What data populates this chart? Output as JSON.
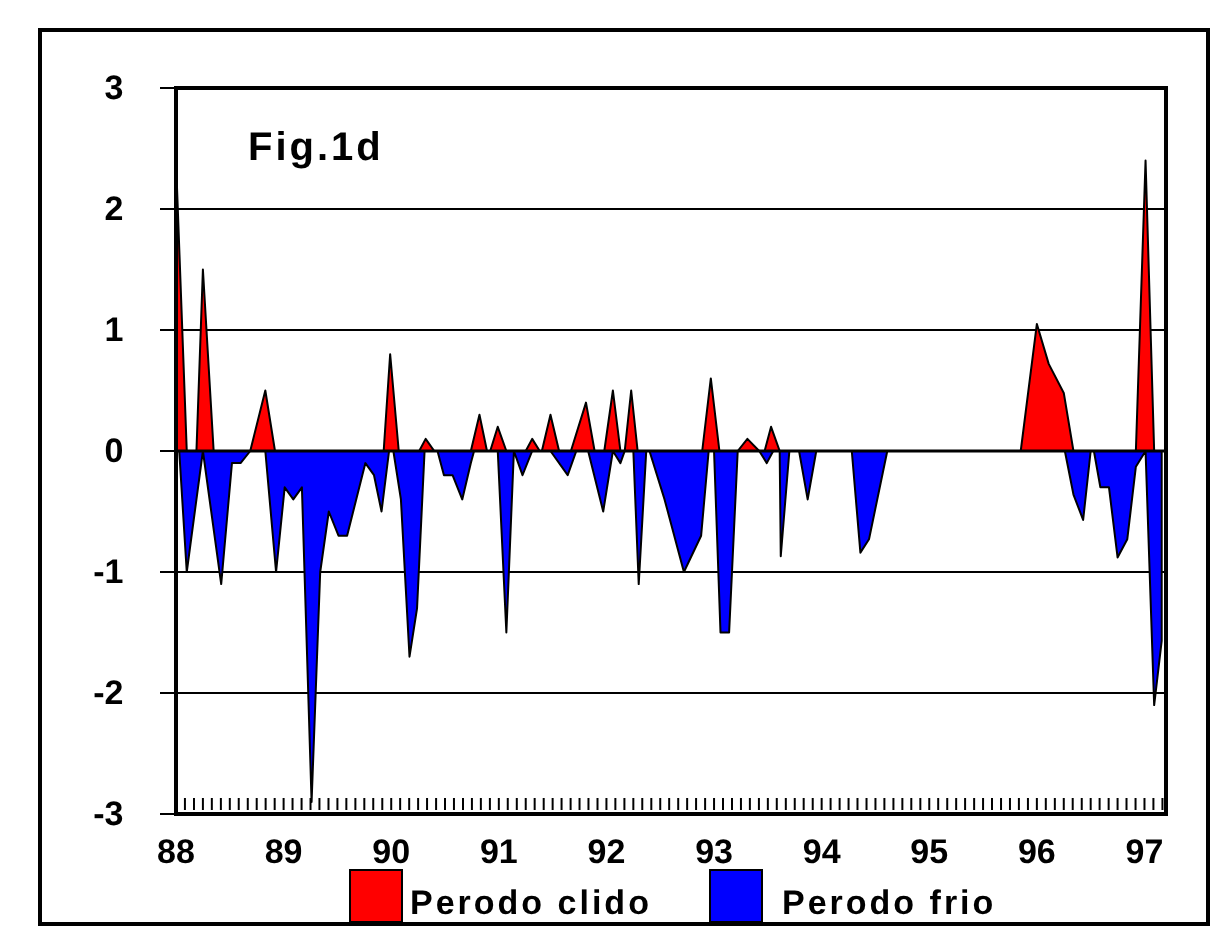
{
  "chart_data": {
    "type": "area",
    "title": "Fig.1d",
    "xlim": [
      88,
      97.2
    ],
    "ylim": [
      -3,
      3
    ],
    "yticks": [
      -3,
      -2,
      -1,
      0,
      1,
      2,
      3
    ],
    "xticks": [
      88,
      {
        "value": 88.083,
        "label": null
      },
      {
        "value": 88.167,
        "label": null
      },
      {
        "value": 88.25,
        "label": null
      },
      {
        "value": 88.333,
        "label": null
      },
      {
        "value": 88.417,
        "label": null
      },
      {
        "value": 88.5,
        "label": null
      },
      {
        "value": 88.583,
        "label": null
      },
      {
        "value": 88.667,
        "label": null
      },
      {
        "value": 88.75,
        "label": null
      },
      {
        "value": 88.833,
        "label": null
      },
      {
        "value": 88.917,
        "label": null
      },
      89,
      {
        "value": 89.083,
        "label": null
      },
      {
        "value": 89.167,
        "label": null
      },
      {
        "value": 89.25,
        "label": null
      },
      {
        "value": 89.333,
        "label": null
      },
      {
        "value": 89.417,
        "label": null
      },
      {
        "value": 89.5,
        "label": null
      },
      {
        "value": 89.583,
        "label": null
      },
      {
        "value": 89.667,
        "label": null
      },
      {
        "value": 89.75,
        "label": null
      },
      {
        "value": 89.833,
        "label": null
      },
      {
        "value": 89.917,
        "label": null
      },
      90,
      {
        "value": 90.083,
        "label": null
      },
      {
        "value": 90.167,
        "label": null
      },
      {
        "value": 90.25,
        "label": null
      },
      {
        "value": 90.333,
        "label": null
      },
      {
        "value": 90.417,
        "label": null
      },
      {
        "value": 90.5,
        "label": null
      },
      {
        "value": 90.583,
        "label": null
      },
      {
        "value": 90.667,
        "label": null
      },
      {
        "value": 90.75,
        "label": null
      },
      {
        "value": 90.833,
        "label": null
      },
      {
        "value": 90.917,
        "label": null
      },
      91,
      {
        "value": 91.083,
        "label": null
      },
      {
        "value": 91.167,
        "label": null
      },
      {
        "value": 91.25,
        "label": null
      },
      {
        "value": 91.333,
        "label": null
      },
      {
        "value": 91.417,
        "label": null
      },
      {
        "value": 91.5,
        "label": null
      },
      {
        "value": 91.583,
        "label": null
      },
      {
        "value": 91.667,
        "label": null
      },
      {
        "value": 91.75,
        "label": null
      },
      {
        "value": 91.833,
        "label": null
      },
      {
        "value": 91.917,
        "label": null
      },
      92,
      {
        "value": 92.083,
        "label": null
      },
      {
        "value": 92.167,
        "label": null
      },
      {
        "value": 92.25,
        "label": null
      },
      {
        "value": 92.333,
        "label": null
      },
      {
        "value": 92.417,
        "label": null
      },
      {
        "value": 92.5,
        "label": null
      },
      {
        "value": 92.583,
        "label": null
      },
      {
        "value": 92.667,
        "label": null
      },
      {
        "value": 92.75,
        "label": null
      },
      {
        "value": 92.833,
        "label": null
      },
      {
        "value": 92.917,
        "label": null
      },
      93,
      {
        "value": 93.083,
        "label": null
      },
      {
        "value": 93.167,
        "label": null
      },
      {
        "value": 93.25,
        "label": null
      },
      {
        "value": 93.333,
        "label": null
      },
      {
        "value": 93.417,
        "label": null
      },
      {
        "value": 93.5,
        "label": null
      },
      {
        "value": 93.583,
        "label": null
      },
      {
        "value": 93.667,
        "label": null
      },
      {
        "value": 93.75,
        "label": null
      },
      {
        "value": 93.833,
        "label": null
      },
      {
        "value": 93.917,
        "label": null
      },
      94,
      {
        "value": 94.083,
        "label": null
      },
      {
        "value": 94.167,
        "label": null
      },
      {
        "value": 94.25,
        "label": null
      },
      {
        "value": 94.333,
        "label": null
      },
      {
        "value": 94.417,
        "label": null
      },
      {
        "value": 94.5,
        "label": null
      },
      {
        "value": 94.583,
        "label": null
      },
      {
        "value": 94.667,
        "label": null
      },
      {
        "value": 94.75,
        "label": null
      },
      {
        "value": 94.833,
        "label": null
      },
      {
        "value": 94.917,
        "label": null
      },
      95,
      {
        "value": 95.083,
        "label": null
      },
      {
        "value": 95.167,
        "label": null
      },
      {
        "value": 95.25,
        "label": null
      },
      {
        "value": 95.333,
        "label": null
      },
      {
        "value": 95.417,
        "label": null
      },
      {
        "value": 95.5,
        "label": null
      },
      {
        "value": 95.583,
        "label": null
      },
      {
        "value": 95.667,
        "label": null
      },
      {
        "value": 95.75,
        "label": null
      },
      {
        "value": 95.833,
        "label": null
      },
      {
        "value": 95.917,
        "label": null
      },
      96,
      {
        "value": 96.083,
        "label": null
      },
      {
        "value": 96.167,
        "label": null
      },
      {
        "value": 96.25,
        "label": null
      },
      {
        "value": 96.333,
        "label": null
      },
      {
        "value": 96.417,
        "label": null
      },
      {
        "value": 96.5,
        "label": null
      },
      {
        "value": 96.583,
        "label": null
      },
      {
        "value": 96.667,
        "label": null
      },
      {
        "value": 96.75,
        "label": null
      },
      {
        "value": 96.833,
        "label": null
      },
      {
        "value": 96.917,
        "label": null
      },
      97,
      {
        "value": 97.083,
        "label": null
      },
      {
        "value": 97.167,
        "label": null
      }
    ],
    "grid": "y",
    "legend": "bottom",
    "ref_lines": [
      {
        "axis": "y",
        "value": 0,
        "color": "#000000"
      }
    ],
    "series": [
      {
        "name": "Perodo clido",
        "color": "#ff0000",
        "x": [
          88.0,
          88.1,
          88.19,
          88.25,
          88.35,
          88.69,
          88.83,
          88.92,
          89.93,
          89.99,
          90.07,
          90.26,
          90.32,
          90.4,
          90.74,
          90.82,
          90.89,
          90.92,
          90.99,
          91.07,
          91.25,
          91.31,
          91.38,
          91.4,
          91.48,
          91.56,
          91.67,
          91.81,
          91.89,
          91.98,
          92.06,
          92.13,
          92.17,
          92.23,
          92.29,
          92.89,
          92.97,
          93.05,
          93.22,
          93.31,
          93.42,
          93.47,
          93.53,
          93.61,
          95.85,
          96.0,
          96.11,
          96.25,
          96.34,
          96.92,
          97.01,
          97.09
        ],
        "values": [
          2.4,
          0,
          0,
          1.5,
          0,
          0,
          0.5,
          0,
          0,
          0.8,
          0,
          0,
          0.1,
          0,
          0,
          0.3,
          0,
          0,
          0.2,
          0,
          0,
          0.1,
          0,
          0,
          0.3,
          0,
          0,
          0.4,
          0,
          0,
          0.5,
          0,
          0,
          0.5,
          0,
          0,
          0.6,
          0,
          0,
          0.1,
          0,
          0,
          0.2,
          0,
          0,
          1.05,
          0.72,
          0.48,
          0,
          0,
          2.4,
          0
        ]
      },
      {
        "name": "Perodo frio",
        "color": "#0000ff",
        "x": [
          88.03,
          88.1,
          88.25,
          88.42,
          88.52,
          88.6,
          88.69,
          88.83,
          88.93,
          89.01,
          89.09,
          89.17,
          89.26,
          89.34,
          89.42,
          89.51,
          89.59,
          89.76,
          89.84,
          89.91,
          89.98,
          90.02,
          90.09,
          90.17,
          90.24,
          90.31,
          90.43,
          90.49,
          90.57,
          90.66,
          90.74,
          90.77,
          90.99,
          91.07,
          91.14,
          91.22,
          91.31,
          91.48,
          91.64,
          91.72,
          91.83,
          91.97,
          92.06,
          92.13,
          92.17,
          92.25,
          92.3,
          92.37,
          92.4,
          92.54,
          92.72,
          92.88,
          92.95,
          93.0,
          93.06,
          93.14,
          93.22,
          93.42,
          93.49,
          93.55,
          93.61,
          93.62,
          93.7,
          93.79,
          93.87,
          93.95,
          94.28,
          94.36,
          94.44,
          94.61,
          96.26,
          96.34,
          96.43,
          96.5,
          96.53,
          96.59,
          96.67,
          96.75,
          96.84,
          96.92,
          97.01,
          97.09,
          97.16
        ],
        "values": [
          0,
          -1.0,
          0,
          -1.1,
          -0.1,
          -0.1,
          0,
          0,
          -1.0,
          -0.3,
          -0.4,
          -0.3,
          -2.9,
          -1.0,
          -0.5,
          -0.7,
          -0.7,
          -0.1,
          -0.2,
          -0.5,
          0,
          0,
          -0.4,
          -1.7,
          -1.3,
          0,
          0,
          -0.2,
          -0.2,
          -0.4,
          -0.1,
          0,
          0,
          -1.5,
          0,
          -0.2,
          0,
          0,
          -0.2,
          0,
          0,
          -0.5,
          0,
          -0.1,
          0,
          0,
          -1.1,
          0,
          0,
          -0.4,
          -1.0,
          -0.7,
          0,
          0,
          -1.5,
          -1.5,
          0,
          0,
          -0.1,
          0,
          0,
          -0.87,
          0,
          0,
          -0.4,
          0,
          0,
          -0.84,
          -0.73,
          0,
          0,
          -0.36,
          -0.57,
          0,
          0,
          -0.3,
          -0.3,
          -0.88,
          -0.73,
          -0.13,
          0,
          -2.1,
          -1.57
        ]
      }
    ]
  }
}
